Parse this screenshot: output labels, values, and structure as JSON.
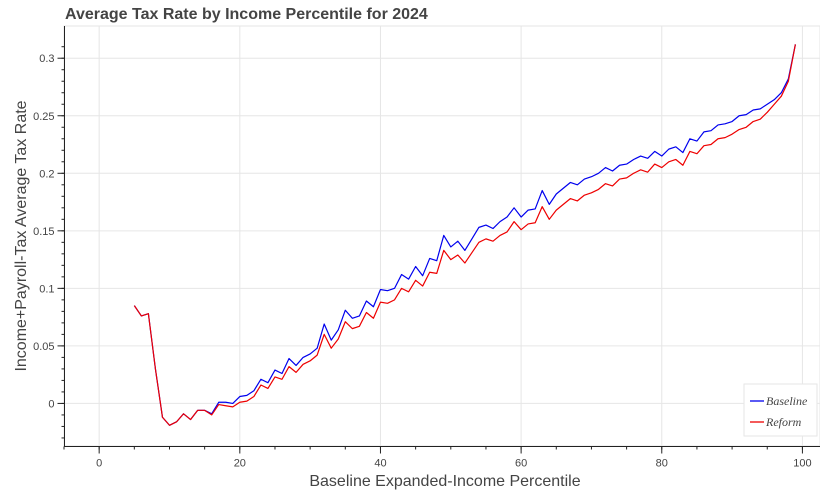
{
  "chart_data": {
    "type": "line",
    "title": "Average Tax Rate by Income Percentile for 2024",
    "xlabel": "Baseline Expanded-Income Percentile",
    "ylabel": "Income+Payroll-Tax Average Tax Rate",
    "xlim": [
      -5,
      102.5
    ],
    "ylim": [
      -0.037,
      0.328
    ],
    "x_ticks": [
      0,
      20,
      40,
      60,
      80,
      100
    ],
    "y_ticks": [
      0,
      0.05,
      0.1,
      0.15,
      0.2,
      0.25,
      0.3
    ],
    "x_tick_labels": [
      "0",
      "20",
      "40",
      "60",
      "80",
      "100"
    ],
    "y_tick_labels": [
      "0",
      "0.05",
      "0.1",
      "0.15",
      "0.2",
      "0.25",
      "0.3"
    ],
    "grid": true,
    "legend_position": "bottom-right",
    "x": [
      5,
      6,
      7,
      8,
      9,
      10,
      11,
      12,
      13,
      14,
      15,
      16,
      17,
      18,
      19,
      20,
      21,
      22,
      23,
      24,
      25,
      26,
      27,
      28,
      29,
      30,
      31,
      32,
      33,
      34,
      35,
      36,
      37,
      38,
      39,
      40,
      41,
      42,
      43,
      44,
      45,
      46,
      47,
      48,
      49,
      50,
      51,
      52,
      53,
      54,
      55,
      56,
      57,
      58,
      59,
      60,
      61,
      62,
      63,
      64,
      65,
      66,
      67,
      68,
      69,
      70,
      71,
      72,
      73,
      74,
      75,
      76,
      77,
      78,
      79,
      80,
      81,
      82,
      83,
      84,
      85,
      86,
      87,
      88,
      89,
      90,
      91,
      92,
      93,
      94,
      95,
      96,
      97,
      98,
      99
    ],
    "series": [
      {
        "name": "Baseline",
        "color": "#0000ee",
        "values": [
          0.085,
          0.076,
          0.078,
          0.03,
          -0.012,
          -0.019,
          -0.016,
          -0.009,
          -0.014,
          -0.006,
          -0.006,
          -0.009,
          0.001,
          0.001,
          0.0,
          0.006,
          0.007,
          0.011,
          0.021,
          0.018,
          0.029,
          0.026,
          0.039,
          0.033,
          0.04,
          0.043,
          0.048,
          0.069,
          0.055,
          0.064,
          0.081,
          0.074,
          0.076,
          0.089,
          0.084,
          0.099,
          0.098,
          0.1,
          0.112,
          0.108,
          0.119,
          0.111,
          0.126,
          0.124,
          0.146,
          0.136,
          0.141,
          0.133,
          0.143,
          0.153,
          0.155,
          0.152,
          0.158,
          0.162,
          0.17,
          0.162,
          0.168,
          0.169,
          0.185,
          0.173,
          0.182,
          0.187,
          0.192,
          0.19,
          0.195,
          0.197,
          0.2,
          0.205,
          0.202,
          0.207,
          0.208,
          0.212,
          0.215,
          0.213,
          0.219,
          0.215,
          0.221,
          0.223,
          0.218,
          0.23,
          0.228,
          0.236,
          0.237,
          0.242,
          0.243,
          0.245,
          0.25,
          0.251,
          0.255,
          0.256,
          0.26,
          0.264,
          0.27,
          0.282,
          0.312
        ]
      },
      {
        "name": "Reform",
        "color": "#ee0000",
        "values": [
          0.085,
          0.076,
          0.078,
          0.03,
          -0.012,
          -0.019,
          -0.016,
          -0.009,
          -0.014,
          -0.006,
          -0.006,
          -0.01,
          -0.001,
          -0.002,
          -0.003,
          0.001,
          0.002,
          0.006,
          0.016,
          0.013,
          0.023,
          0.021,
          0.032,
          0.027,
          0.034,
          0.037,
          0.042,
          0.06,
          0.048,
          0.056,
          0.071,
          0.065,
          0.067,
          0.079,
          0.074,
          0.088,
          0.087,
          0.09,
          0.1,
          0.097,
          0.107,
          0.102,
          0.114,
          0.113,
          0.133,
          0.125,
          0.129,
          0.122,
          0.131,
          0.14,
          0.143,
          0.141,
          0.146,
          0.149,
          0.158,
          0.151,
          0.156,
          0.157,
          0.171,
          0.16,
          0.168,
          0.173,
          0.178,
          0.176,
          0.181,
          0.183,
          0.186,
          0.191,
          0.189,
          0.195,
          0.196,
          0.2,
          0.203,
          0.201,
          0.208,
          0.205,
          0.21,
          0.212,
          0.207,
          0.219,
          0.217,
          0.224,
          0.225,
          0.23,
          0.231,
          0.234,
          0.238,
          0.24,
          0.245,
          0.247,
          0.253,
          0.26,
          0.267,
          0.28,
          0.312
        ]
      }
    ]
  }
}
